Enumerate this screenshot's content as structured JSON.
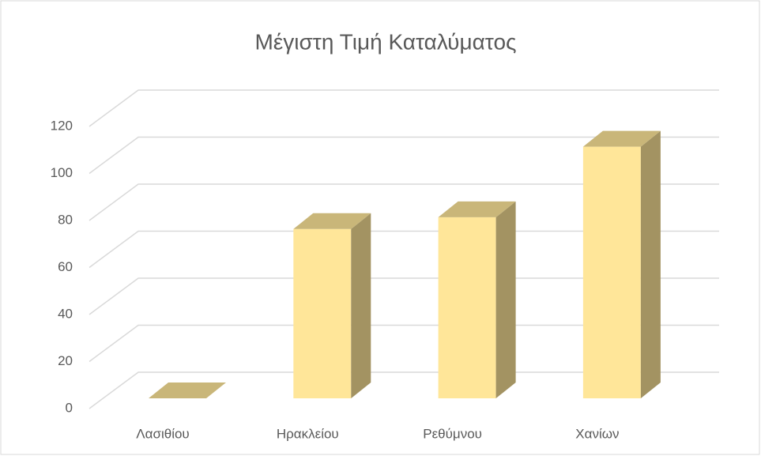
{
  "chart_data": {
    "type": "bar3d",
    "title": "Μέγιστη Τιμή Καταλύματος",
    "categories": [
      "Λασιθίου",
      "Ηρακλείου",
      "Ρεθύμνου",
      "Χανίων"
    ],
    "values": [
      0,
      72,
      77,
      107
    ],
    "color": "#ffe699",
    "ylim": [
      0,
      120
    ],
    "yticks": [
      0,
      20,
      40,
      60,
      80,
      100,
      120
    ],
    "grid": true
  }
}
